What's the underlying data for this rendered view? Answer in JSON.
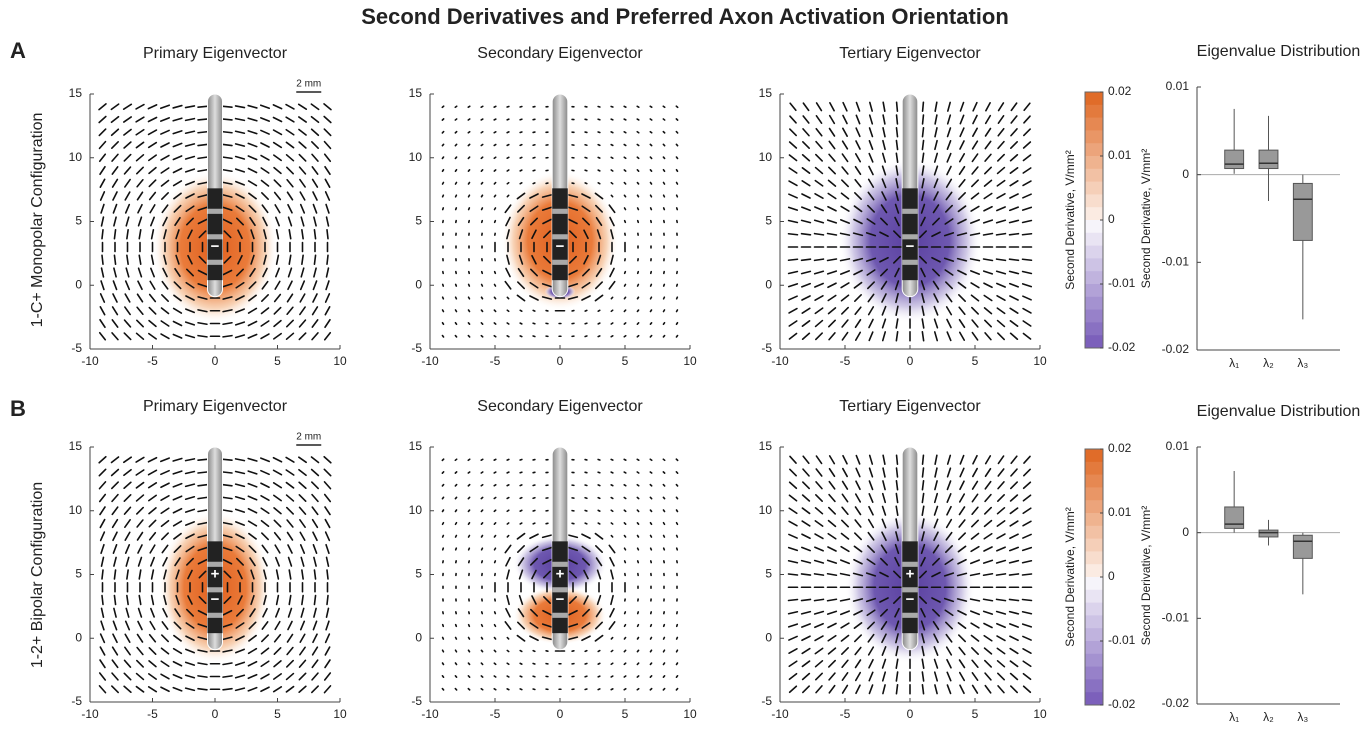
{
  "title": "Second Derivatives and Preferred Axon Activation Orientation",
  "rows": [
    {
      "letter": "A",
      "label": "1-C+ Monopolar Configuration"
    },
    {
      "letter": "B",
      "label": "1-2+ Bipolar Configuration"
    }
  ],
  "chart_data": [
    {
      "type": "field",
      "title": "Primary Eigenvector",
      "scale_bar": "2 mm",
      "contacts": [
        "−"
      ],
      "xlim": [
        -10,
        10
      ],
      "ylim": [
        -5,
        15
      ],
      "xticks": [
        -10,
        -5,
        0,
        5,
        10
      ],
      "yticks": [
        -5,
        0,
        5,
        10,
        15
      ]
    },
    {
      "type": "field",
      "title": "Secondary Eigenvector",
      "contacts": [
        "−"
      ],
      "xlim": [
        -10,
        10
      ],
      "ylim": [
        -5,
        15
      ],
      "xticks": [
        -10,
        -5,
        0,
        5,
        10
      ],
      "yticks": [
        -5,
        0,
        5,
        10,
        15
      ]
    },
    {
      "type": "field",
      "title": "Tertiary Eigenvector",
      "contacts": [
        "−"
      ],
      "xlim": [
        -10,
        10
      ],
      "ylim": [
        -5,
        15
      ],
      "xticks": [
        -10,
        -5,
        0,
        5,
        10
      ],
      "yticks": [
        -5,
        0,
        5,
        10,
        15
      ]
    },
    {
      "type": "colorbar",
      "ylabel": "Second Derivative, V/mm²",
      "ylim": [
        -0.02,
        0.02
      ],
      "yticks": [
        0.02,
        0.01,
        0,
        -0.01,
        -0.02
      ]
    },
    {
      "type": "box",
      "title": "Eigenvalue Distribution",
      "ylabel": "Second Derivative, V/mm²",
      "categories": [
        "λ₁",
        "λ₂",
        "λ₃"
      ],
      "color": "#999999",
      "min": [
        0.0001,
        -0.003,
        -0.0165
      ],
      "q1": [
        0.0007,
        0.0007,
        -0.0075
      ],
      "median": [
        0.0012,
        0.0013,
        -0.0028
      ],
      "q3": [
        0.0028,
        0.0028,
        -0.001
      ],
      "max": [
        0.0075,
        0.0067,
        0
      ],
      "ylim": [
        -0.02,
        0.01
      ],
      "yticks": [
        0.01,
        0,
        -0.01,
        -0.02
      ]
    },
    {
      "type": "field",
      "title": "Primary Eigenvector",
      "scale_bar": "2 mm",
      "contacts": [
        "+",
        "−"
      ],
      "xlim": [
        -10,
        10
      ],
      "ylim": [
        -5,
        15
      ],
      "xticks": [
        -10,
        -5,
        0,
        5,
        10
      ],
      "yticks": [
        -5,
        0,
        5,
        10,
        15
      ]
    },
    {
      "type": "field",
      "title": "Secondary Eigenvector",
      "contacts": [
        "+",
        "−"
      ],
      "xlim": [
        -10,
        10
      ],
      "ylim": [
        -5,
        15
      ],
      "xticks": [
        -10,
        -5,
        0,
        5,
        10
      ],
      "yticks": [
        -5,
        0,
        5,
        10,
        15
      ]
    },
    {
      "type": "field",
      "title": "Tertiary Eigenvector",
      "contacts": [
        "+",
        "−"
      ],
      "xlim": [
        -10,
        10
      ],
      "ylim": [
        -5,
        15
      ],
      "xticks": [
        -10,
        -5,
        0,
        5,
        10
      ],
      "yticks": [
        -5,
        0,
        5,
        10,
        15
      ]
    },
    {
      "type": "colorbar",
      "ylabel": "Second Derivative, V/mm²",
      "ylim": [
        -0.02,
        0.02
      ],
      "yticks": [
        0.02,
        0.01,
        0,
        -0.01,
        -0.02
      ]
    },
    {
      "type": "box",
      "title": "Eigenvalue Distribution",
      "ylabel": "Second Derivative, V/mm²",
      "categories": [
        "λ₁",
        "λ₂",
        "λ₃"
      ],
      "color": "#999999",
      "min": [
        0,
        -0.0015,
        -0.0072
      ],
      "q1": [
        0.0005,
        -0.0005,
        -0.003
      ],
      "median": [
        0.001,
        0,
        -0.001
      ],
      "q3": [
        0.003,
        0.0003,
        -0.0003
      ],
      "max": [
        0.0072,
        0.0015,
        0
      ],
      "ylim": [
        -0.02,
        0.01
      ],
      "yticks": [
        0.01,
        0,
        -0.01,
        -0.02
      ]
    }
  ]
}
